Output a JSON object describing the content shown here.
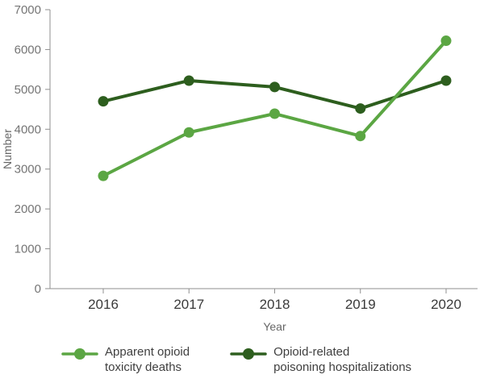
{
  "chart_data": {
    "type": "line",
    "title": "",
    "xlabel": "Year",
    "ylabel": "Number",
    "x": [
      "2016",
      "2017",
      "2018",
      "2019",
      "2020"
    ],
    "ylim": [
      0,
      7000
    ],
    "yticks": [
      0,
      1000,
      2000,
      3000,
      4000,
      5000,
      6000,
      7000
    ],
    "grid": false,
    "legend_position": "bottom",
    "series": [
      {
        "name": "Apparent opioid toxicity deaths",
        "legend_label": "Apparent opioid\ntoxicity deaths",
        "color": "#5ba643",
        "values": [
          2830,
          3920,
          4390,
          3830,
          6220
        ]
      },
      {
        "name": "Opioid-related poisoning hospitalizations",
        "legend_label": "Opioid-related\npoisoning hospitalizations",
        "color": "#2d5e1e",
        "values": [
          4700,
          5220,
          5060,
          4520,
          5220
        ]
      }
    ],
    "style": {
      "axis_color": "#8f8f8f",
      "y_tick_label_color": "#757575",
      "x_tick_label_color": "#3a3a3a",
      "axis_title_color": "#666666"
    }
  }
}
